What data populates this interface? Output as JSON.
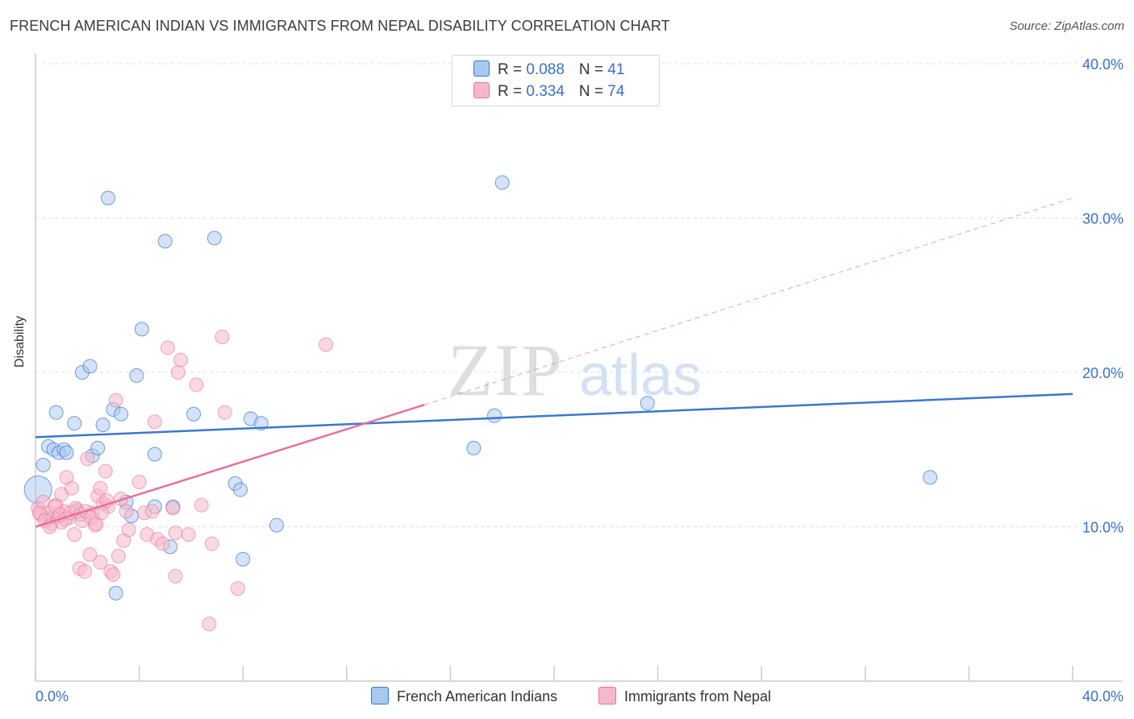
{
  "header": {
    "title": "FRENCH AMERICAN INDIAN VS IMMIGRANTS FROM NEPAL DISABILITY CORRELATION CHART",
    "source": "Source: ZipAtlas.com"
  },
  "watermark": {
    "zip": "ZIP",
    "atlas": "atlas"
  },
  "legend": {
    "series1": {
      "r_label": "R = ",
      "r_value": "0.088",
      "n_label": "N = ",
      "n_value": "41"
    },
    "series2": {
      "r_label": "R = ",
      "r_value": "0.334",
      "n_label": "N = ",
      "n_value": "74"
    }
  },
  "colors": {
    "blue": "#3a78cf",
    "blue_fill": "#a9c8f0",
    "pink": "#e8709a",
    "pink_fill": "#f5b8cb",
    "accent_text": "#3a6fc9"
  },
  "chart_data": {
    "type": "scatter",
    "title": "FRENCH AMERICAN INDIAN VS IMMIGRANTS FROM NEPAL DISABILITY CORRELATION CHART",
    "xlabel": "",
    "ylabel": "Disability",
    "xlim": [
      0,
      40
    ],
    "ylim": [
      0,
      40
    ],
    "x_tick_labels": [
      "0.0%",
      "40.0%"
    ],
    "y_tick_labels": [
      "10.0%",
      "20.0%",
      "30.0%",
      "40.0%"
    ],
    "y_ticks": [
      10,
      20,
      30,
      40
    ],
    "series": [
      {
        "name": "French American Indians",
        "color": "#3a78cf",
        "R": 0.088,
        "N": 41,
        "trend": {
          "x": [
            0,
            40
          ],
          "y": [
            15.8,
            18.6
          ]
        },
        "points": [
          [
            0.1,
            12.4
          ],
          [
            0.3,
            14.0
          ],
          [
            0.5,
            15.2
          ],
          [
            0.7,
            15.0
          ],
          [
            0.8,
            17.4
          ],
          [
            0.9,
            14.8
          ],
          [
            1.1,
            15.0
          ],
          [
            1.2,
            14.8
          ],
          [
            1.5,
            16.7
          ],
          [
            1.6,
            11.0
          ],
          [
            1.8,
            20.0
          ],
          [
            2.1,
            20.4
          ],
          [
            2.2,
            14.6
          ],
          [
            2.4,
            15.1
          ],
          [
            2.6,
            16.6
          ],
          [
            2.8,
            31.3
          ],
          [
            3.0,
            17.6
          ],
          [
            3.1,
            5.7
          ],
          [
            3.3,
            17.3
          ],
          [
            3.5,
            11.6
          ],
          [
            3.7,
            10.7
          ],
          [
            3.9,
            19.8
          ],
          [
            4.1,
            22.8
          ],
          [
            4.6,
            14.7
          ],
          [
            4.6,
            11.3
          ],
          [
            5.0,
            28.5
          ],
          [
            5.2,
            8.7
          ],
          [
            5.3,
            11.3
          ],
          [
            6.1,
            17.3
          ],
          [
            6.9,
            28.7
          ],
          [
            7.7,
            12.8
          ],
          [
            7.9,
            12.4
          ],
          [
            8.0,
            7.9
          ],
          [
            8.3,
            17.0
          ],
          [
            8.7,
            16.7
          ],
          [
            9.3,
            10.1
          ],
          [
            16.9,
            15.1
          ],
          [
            17.7,
            17.2
          ],
          [
            18.0,
            32.3
          ],
          [
            23.6,
            18.0
          ],
          [
            34.5,
            13.2
          ]
        ]
      },
      {
        "name": "Immigrants from Nepal",
        "color": "#e8709a",
        "R": 0.334,
        "N": 74,
        "trend_solid": {
          "x": [
            0,
            15
          ],
          "y": [
            10.0,
            17.9
          ]
        },
        "trend_dashed": {
          "x": [
            15,
            40
          ],
          "y": [
            17.9,
            31.3
          ]
        },
        "points": [
          [
            0.1,
            11.2
          ],
          [
            0.2,
            10.8
          ],
          [
            0.3,
            11.6
          ],
          [
            0.4,
            10.5
          ],
          [
            0.5,
            10.9
          ],
          [
            0.6,
            10.2
          ],
          [
            0.7,
            10.6
          ],
          [
            0.8,
            11.4
          ],
          [
            0.9,
            10.7
          ],
          [
            1.0,
            12.1
          ],
          [
            1.0,
            10.3
          ],
          [
            1.1,
            11.0
          ],
          [
            1.2,
            13.2
          ],
          [
            1.3,
            10.6
          ],
          [
            1.4,
            12.5
          ],
          [
            1.5,
            9.5
          ],
          [
            1.6,
            11.1
          ],
          [
            1.7,
            7.3
          ],
          [
            1.8,
            10.4
          ],
          [
            1.9,
            7.1
          ],
          [
            2.0,
            14.4
          ],
          [
            2.1,
            8.2
          ],
          [
            2.2,
            10.9
          ],
          [
            2.3,
            10.1
          ],
          [
            2.4,
            12.0
          ],
          [
            2.5,
            7.7
          ],
          [
            2.5,
            12.5
          ],
          [
            2.6,
            11.5
          ],
          [
            2.7,
            13.6
          ],
          [
            2.8,
            11.3
          ],
          [
            2.9,
            7.1
          ],
          [
            3.0,
            6.9
          ],
          [
            3.1,
            18.2
          ],
          [
            3.2,
            8.1
          ],
          [
            3.3,
            11.8
          ],
          [
            3.4,
            9.1
          ],
          [
            3.5,
            11.0
          ],
          [
            3.6,
            9.8
          ],
          [
            4.0,
            12.9
          ],
          [
            4.2,
            10.9
          ],
          [
            4.3,
            9.5
          ],
          [
            4.5,
            11.0
          ],
          [
            4.6,
            16.8
          ],
          [
            4.7,
            9.2
          ],
          [
            4.9,
            8.9
          ],
          [
            5.1,
            21.6
          ],
          [
            5.3,
            11.2
          ],
          [
            5.4,
            9.6
          ],
          [
            5.4,
            6.8
          ],
          [
            5.5,
            20.0
          ],
          [
            5.6,
            20.8
          ],
          [
            5.9,
            9.5
          ],
          [
            6.2,
            19.2
          ],
          [
            6.4,
            11.4
          ],
          [
            6.7,
            3.7
          ],
          [
            6.8,
            8.9
          ],
          [
            7.2,
            22.3
          ],
          [
            7.3,
            17.4
          ],
          [
            7.8,
            6.0
          ],
          [
            11.2,
            21.8
          ],
          [
            0.15,
            10.9
          ],
          [
            0.35,
            10.4
          ],
          [
            0.55,
            10.0
          ],
          [
            0.75,
            11.3
          ],
          [
            0.95,
            10.8
          ],
          [
            1.15,
            10.5
          ],
          [
            1.35,
            10.9
          ],
          [
            1.55,
            11.2
          ],
          [
            1.75,
            10.8
          ],
          [
            1.95,
            11.0
          ],
          [
            2.15,
            10.6
          ],
          [
            2.35,
            10.2
          ],
          [
            2.55,
            10.9
          ],
          [
            2.75,
            11.7
          ]
        ]
      }
    ],
    "bottom_legend": [
      "French American Indians",
      "Immigrants from Nepal"
    ]
  }
}
